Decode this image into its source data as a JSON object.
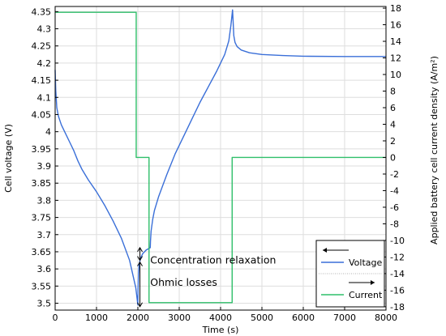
{
  "chart_data": {
    "type": "line",
    "xlabel": "Time (s)",
    "ylabel_left": "Cell voltage (V)",
    "ylabel_right": "Applied battery cell current density (A/m²)",
    "xlim": [
      0,
      8000
    ],
    "ylim_left": [
      3.48,
      4.365
    ],
    "ylim_right": [
      -18.4,
      18.2
    ],
    "x_ticks": [
      0,
      1000,
      2000,
      3000,
      4000,
      5000,
      6000,
      7000,
      8000
    ],
    "left_ticks": [
      "3.5",
      "3.55",
      "3.6",
      "3.65",
      "3.7",
      "3.75",
      "3.8",
      "3.85",
      "3.9",
      "3.95",
      "4",
      "4.05",
      "4.1",
      "4.15",
      "4.2",
      "4.25",
      "4.3",
      "4.35"
    ],
    "right_ticks": [
      -18,
      -16,
      -14,
      -12,
      -10,
      -8,
      -6,
      -4,
      -2,
      0,
      2,
      4,
      6,
      8,
      10,
      12,
      14,
      16,
      18
    ],
    "grid": true,
    "legend": "bottom-right",
    "series": [
      {
        "name": "Voltage",
        "axis": "left",
        "color": "#3a6fd8",
        "points": [
          [
            0,
            4.18
          ],
          [
            15,
            4.12
          ],
          [
            40,
            4.07
          ],
          [
            80,
            4.045
          ],
          [
            150,
            4.02
          ],
          [
            250,
            3.995
          ],
          [
            350,
            3.97
          ],
          [
            450,
            3.945
          ],
          [
            550,
            3.915
          ],
          [
            650,
            3.89
          ],
          [
            800,
            3.86
          ],
          [
            1000,
            3.825
          ],
          [
            1200,
            3.785
          ],
          [
            1400,
            3.74
          ],
          [
            1600,
            3.69
          ],
          [
            1800,
            3.625
          ],
          [
            1950,
            3.545
          ],
          [
            2000,
            3.495
          ],
          [
            2005,
            3.54
          ],
          [
            2015,
            3.585
          ],
          [
            2030,
            3.61
          ],
          [
            2060,
            3.63
          ],
          [
            2120,
            3.645
          ],
          [
            2200,
            3.655
          ],
          [
            2300,
            3.662
          ],
          [
            2305,
            3.68
          ],
          [
            2320,
            3.71
          ],
          [
            2360,
            3.745
          ],
          [
            2400,
            3.77
          ],
          [
            2500,
            3.81
          ],
          [
            2700,
            3.875
          ],
          [
            2900,
            3.935
          ],
          [
            3100,
            3.985
          ],
          [
            3300,
            4.035
          ],
          [
            3500,
            4.085
          ],
          [
            3700,
            4.13
          ],
          [
            3900,
            4.175
          ],
          [
            4000,
            4.2
          ],
          [
            4100,
            4.225
          ],
          [
            4200,
            4.265
          ],
          [
            4250,
            4.31
          ],
          [
            4290,
            4.355
          ],
          [
            4300,
            4.33
          ],
          [
            4320,
            4.28
          ],
          [
            4350,
            4.26
          ],
          [
            4400,
            4.248
          ],
          [
            4500,
            4.238
          ],
          [
            4700,
            4.23
          ],
          [
            5000,
            4.225
          ],
          [
            5500,
            4.222
          ],
          [
            6000,
            4.22
          ],
          [
            7000,
            4.219
          ],
          [
            8000,
            4.219
          ]
        ]
      },
      {
        "name": "Current",
        "axis": "right",
        "color": "#2fbf6a",
        "points": [
          [
            0,
            17.5
          ],
          [
            1960,
            17.5
          ],
          [
            1960,
            0
          ],
          [
            2270,
            0
          ],
          [
            2270,
            -17.5
          ],
          [
            4280,
            -17.5
          ],
          [
            4280,
            0
          ],
          [
            8000,
            0
          ]
        ]
      }
    ],
    "annotations": [
      {
        "text": "Concentration relaxation",
        "x": 2300,
        "y": 3.625
      },
      {
        "text": "Ohmic losses",
        "x": 2300,
        "y": 3.56
      }
    ]
  }
}
